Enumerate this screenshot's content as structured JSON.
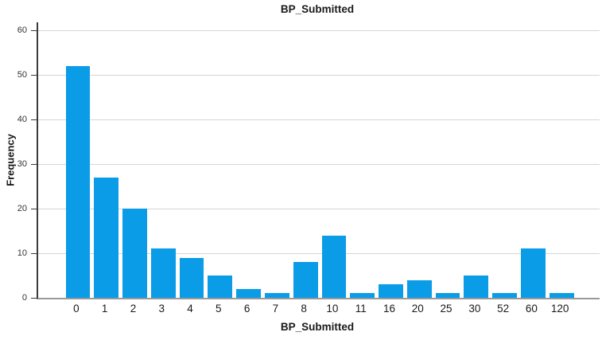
{
  "chart_data": {
    "type": "bar",
    "title": "BP_Submitted",
    "xlabel": "BP_Submitted",
    "ylabel": "Frequency",
    "categories": [
      "0",
      "1",
      "2",
      "3",
      "4",
      "5",
      "6",
      "7",
      "8",
      "10",
      "11",
      "16",
      "20",
      "25",
      "30",
      "52",
      "60",
      "120"
    ],
    "values": [
      52,
      27,
      20,
      11,
      9,
      5,
      2,
      1,
      8,
      14,
      1,
      3,
      4,
      1,
      5,
      1,
      11,
      1
    ],
    "yticks": [
      0,
      10,
      20,
      30,
      40,
      50,
      60
    ],
    "ylim": [
      0,
      61.8
    ],
    "grid": true,
    "legend": false,
    "colors": {
      "bar": "#0b9ce8",
      "gridline": "#d5d5d5",
      "y_axis": "#3a3a3a",
      "x_axis": "#999999",
      "text": "#1a1a1a",
      "tick_text": "#333333",
      "background": "#ffffff"
    }
  }
}
